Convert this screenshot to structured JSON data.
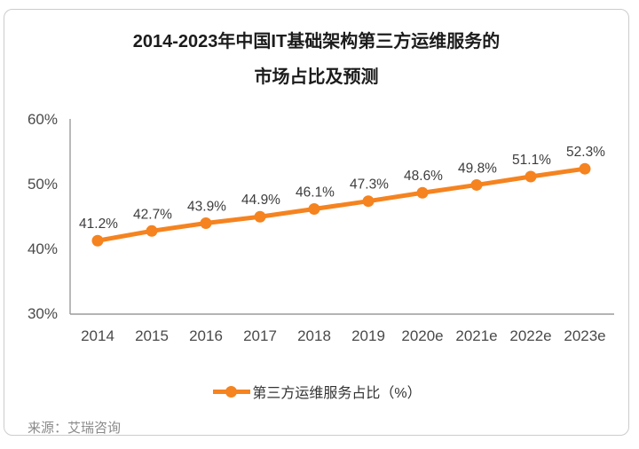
{
  "header": {
    "title_line1": "2014-2023年中国IT基础架构第三方运维服务的",
    "title_line2": "市场占比及预测"
  },
  "chart_data": {
    "type": "line",
    "title": "2014-2023年中国IT基础架构第三方运维服务的市场占比及预测",
    "categories": [
      "2014",
      "2015",
      "2016",
      "2017",
      "2018",
      "2019",
      "2020e",
      "2021e",
      "2022e",
      "2023e"
    ],
    "series": [
      {
        "name": "第三方运维服务占比（%）",
        "values": [
          41.2,
          42.7,
          43.9,
          44.9,
          46.1,
          47.3,
          48.6,
          49.8,
          51.1,
          52.3
        ],
        "color": "#F5831F"
      }
    ],
    "data_labels": [
      "41.2%",
      "42.7%",
      "43.9%",
      "44.9%",
      "46.1%",
      "47.3%",
      "48.6%",
      "49.8%",
      "51.1%",
      "52.3%"
    ],
    "ylim": [
      30,
      60
    ],
    "ytick_values": [
      30,
      40,
      50,
      60
    ],
    "ytick_labels": [
      "30%",
      "40%",
      "50%",
      "60%"
    ],
    "grid": false,
    "legend_position": "bottom"
  },
  "legend": {
    "label": "第三方运维服务占比（%）"
  },
  "source": {
    "label": "来源：艾瑞咨询"
  },
  "colors": {
    "line": "#F5831F",
    "axis_line": "#9b9b9b",
    "tick_text": "#4a4a4a",
    "data_label_text": "#3d3d3d",
    "title_text": "#1c1c1c",
    "legend_text": "#333333",
    "source_text": "#8a8a8a",
    "card_border": "#cccccc"
  }
}
